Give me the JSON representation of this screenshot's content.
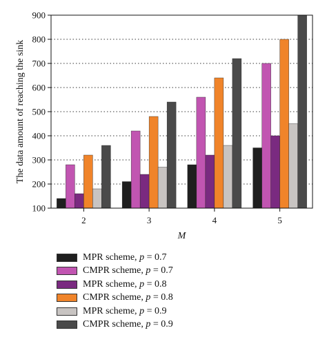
{
  "chart_data": {
    "type": "bar",
    "xlabel": "M",
    "ylabel": "The data amount of reaching the sink",
    "categories": [
      "2",
      "3",
      "4",
      "5"
    ],
    "ylim": [
      100,
      900
    ],
    "yticks": [
      100,
      200,
      300,
      400,
      500,
      600,
      700,
      800,
      900
    ],
    "grid": "horizontal dotted",
    "legend_position": "below plot",
    "series": [
      {
        "name": "MPR scheme, p = 0.7",
        "scheme": "MPR scheme, ",
        "param": "p",
        "eq": " = 0.7",
        "color": "#1f1f1f",
        "values": [
          140,
          210,
          280,
          350
        ]
      },
      {
        "name": "CMPR scheme, p = 0.7",
        "scheme": "CMPR scheme, ",
        "param": "p",
        "eq": " = 0.7",
        "color": "#c155b1",
        "values": [
          280,
          420,
          560,
          700
        ]
      },
      {
        "name": "MPR scheme, p = 0.8",
        "scheme": "MPR scheme, ",
        "param": "p",
        "eq": " = 0.8",
        "color": "#7a2a80",
        "values": [
          160,
          240,
          320,
          400
        ]
      },
      {
        "name": "CMPR scheme, p = 0.8",
        "scheme": "CMPR scheme, ",
        "param": "p",
        "eq": " = 0.8",
        "color": "#f0842a",
        "values": [
          320,
          480,
          640,
          800
        ]
      },
      {
        "name": "MPR scheme, p = 0.9",
        "scheme": "MPR scheme, ",
        "param": "p",
        "eq": " = 0.9",
        "color": "#c8c4c2",
        "values": [
          180,
          270,
          360,
          450
        ]
      },
      {
        "name": "CMPR scheme, p = 0.9",
        "scheme": "CMPR scheme, ",
        "param": "p",
        "eq": " = 0.9",
        "color": "#4a4a4a",
        "values": [
          360,
          540,
          720,
          900
        ]
      }
    ]
  }
}
